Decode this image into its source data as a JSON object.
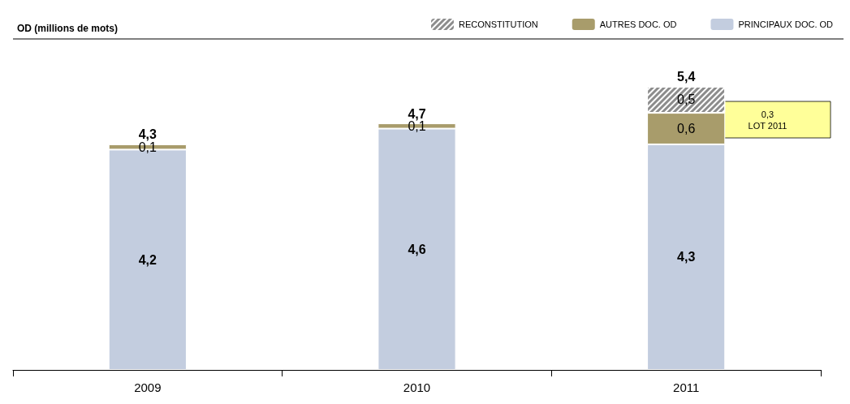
{
  "chart_data": {
    "type": "bar",
    "title": "OD (millions de mots)",
    "categories": [
      "2009",
      "2010",
      "2011"
    ],
    "stacked": true,
    "legend": "top right",
    "series": [
      {
        "name": "PRINCIPAUX DOC. OD",
        "color": "#c3cddf",
        "values": [
          4.2,
          4.6,
          4.3
        ],
        "value_labels": [
          "4,2",
          "4,6",
          "4,3"
        ]
      },
      {
        "name": "AUTRES DOC. OD",
        "color": "#a89c6b",
        "values": [
          0.1,
          0.1,
          0.6
        ],
        "value_labels": [
          "0,1",
          "0,1",
          "0,6"
        ]
      },
      {
        "name": "RECONSTITUTION",
        "color": "#8c8c8c",
        "values": [
          null,
          null,
          0.5
        ],
        "value_labels": [
          null,
          null,
          "0,5"
        ]
      }
    ],
    "totals": [
      "4,3",
      "4,7",
      "5,4"
    ],
    "annotations": [
      "0,3\nLOT 2011"
    ]
  }
}
